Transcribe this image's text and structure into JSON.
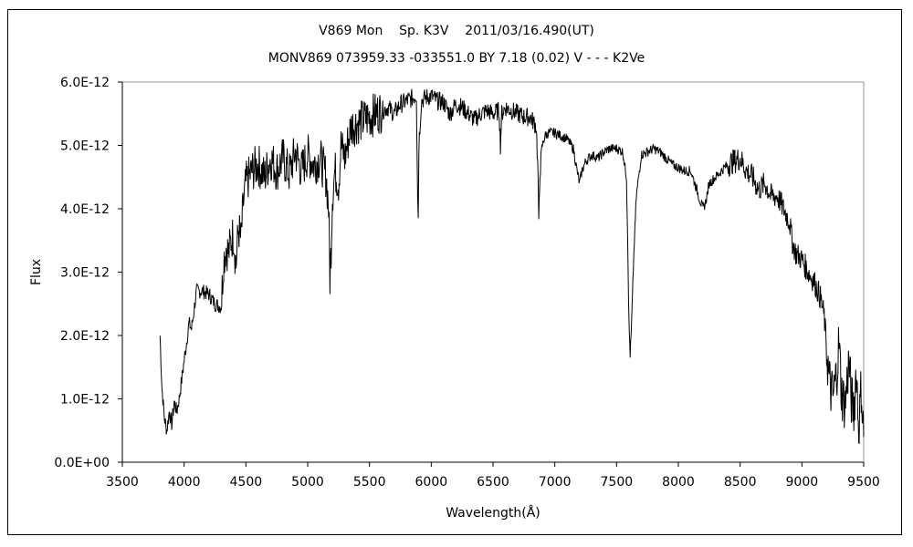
{
  "chart_data": {
    "type": "line",
    "title": "V869 Mon    Sp. K3V    2011/03/16.490(UT)",
    "subtitle": "MONV869 073959.33 -033551.0 BY 7.18 (0.02) V - - - K2Ve",
    "xlabel": "Wavelength(Å)",
    "ylabel": "Flux",
    "xlim": [
      3500,
      9500
    ],
    "ylim": [
      0,
      6e-12
    ],
    "xticks": [
      "3500",
      "4000",
      "4500",
      "5000",
      "5500",
      "6000",
      "6500",
      "7000",
      "7500",
      "8000",
      "8500",
      "9000",
      "9500"
    ],
    "yticks": [
      "0.0E+00",
      "1.0E-12",
      "2.0E-12",
      "3.0E-12",
      "4.0E-12",
      "5.0E-12",
      "6.0E-12"
    ],
    "grid": false,
    "legend": "none",
    "line_color": "#000000",
    "series": [
      {
        "x": [
          3805,
          3820,
          3840,
          3860,
          3880,
          3900,
          3920,
          3940,
          3960,
          3980,
          4000,
          4020,
          4040,
          4060,
          4080,
          4100,
          4150,
          4200,
          4250,
          4300,
          4320,
          4340,
          4360,
          4380,
          4400,
          4420,
          4440,
          4460,
          4480,
          4500,
          4550,
          4600,
          4650,
          4700,
          4750,
          4800,
          4850,
          4900,
          4950,
          5000,
          5050,
          5100,
          5150,
          5170,
          5180,
          5190,
          5200,
          5220,
          5250,
          5270,
          5300,
          5350,
          5400,
          5450,
          5500,
          5550,
          5600,
          5650,
          5700,
          5750,
          5800,
          5850,
          5880,
          5890,
          5895,
          5900,
          5920,
          5950,
          6000,
          6050,
          6100,
          6150,
          6200,
          6250,
          6300,
          6350,
          6400,
          6450,
          6500,
          6550,
          6560,
          6570,
          6600,
          6650,
          6700,
          6750,
          6800,
          6850,
          6865,
          6870,
          6880,
          6900,
          6920,
          6950,
          7000,
          7050,
          7100,
          7150,
          7180,
          7200,
          7220,
          7250,
          7300,
          7350,
          7400,
          7450,
          7500,
          7550,
          7580,
          7590,
          7600,
          7610,
          7620,
          7640,
          7660,
          7700,
          7750,
          7800,
          7850,
          7900,
          7950,
          8000,
          8050,
          8100,
          8150,
          8180,
          8200,
          8220,
          8250,
          8300,
          8350,
          8400,
          8450,
          8500,
          8550,
          8600,
          8650,
          8700,
          8750,
          8800,
          8850,
          8900,
          8920,
          8950,
          9000,
          9050,
          9100,
          9120,
          9150,
          9180,
          9200,
          9220,
          9250,
          9280,
          9300,
          9320,
          9350,
          9380,
          9400,
          9420,
          9440,
          9460,
          9480,
          9500
        ],
        "y": [
          2e-12,
          1.2e-12,
          7e-13,
          5e-13,
          8e-13,
          6e-13,
          9.5e-13,
          8e-13,
          1e-12,
          1.3e-12,
          1.6e-12,
          1.9e-12,
          2.2e-12,
          2.1e-12,
          2.4e-12,
          2.7e-12,
          2.7e-12,
          2.65e-12,
          2.5e-12,
          2.45e-12,
          3.2e-12,
          3.4e-12,
          3.3e-12,
          3.5e-12,
          3.6e-12,
          3.1e-12,
          3.7e-12,
          3.5e-12,
          4.1e-12,
          4.4e-12,
          4.6e-12,
          4.7e-12,
          4.5e-12,
          4.8e-12,
          4.6e-12,
          4.8e-12,
          4.55e-12,
          4.9e-12,
          4.6e-12,
          4.85e-12,
          4.7e-12,
          4.8e-12,
          4.5e-12,
          4e-12,
          2.9e-12,
          3.4e-12,
          4.2e-12,
          4.6e-12,
          4.4e-12,
          5e-12,
          4.8e-12,
          5.3e-12,
          5.35e-12,
          5.4e-12,
          5.45e-12,
          5.5e-12,
          5.55e-12,
          5.6e-12,
          5.5e-12,
          5.65e-12,
          5.7e-12,
          5.75e-12,
          5.8e-12,
          4.2e-12,
          3.9e-12,
          5e-12,
          5.7e-12,
          5.75e-12,
          5.78e-12,
          5.7e-12,
          5.68e-12,
          5.5e-12,
          5.65e-12,
          5.6e-12,
          5.5e-12,
          5.4e-12,
          5.5e-12,
          5.55e-12,
          5.5e-12,
          5.55e-12,
          5e-12,
          5.5e-12,
          5.6e-12,
          5.55e-12,
          5.5e-12,
          5.45e-12,
          5.45e-12,
          5.3e-12,
          4.5e-12,
          3.7e-12,
          4.6e-12,
          5e-12,
          5.15e-12,
          5.2e-12,
          5.2e-12,
          5.15e-12,
          5.1e-12,
          4.95e-12,
          4.6e-12,
          4.4e-12,
          4.6e-12,
          4.75e-12,
          4.85e-12,
          4.8e-12,
          4.9e-12,
          4.95e-12,
          4.95e-12,
          4.9e-12,
          4.5e-12,
          3.5e-12,
          2.2e-12,
          1.7e-12,
          2.1e-12,
          3.3e-12,
          4.2e-12,
          4.85e-12,
          4.9e-12,
          4.95e-12,
          4.9e-12,
          4.8e-12,
          4.7e-12,
          4.65e-12,
          4.6e-12,
          4.6e-12,
          4.3e-12,
          4.1e-12,
          4e-12,
          4.1e-12,
          4.4e-12,
          4.5e-12,
          4.6e-12,
          4.7e-12,
          4.75e-12,
          4.8e-12,
          4.6e-12,
          4.5e-12,
          4.3e-12,
          4.4e-12,
          4.2e-12,
          4.2e-12,
          4e-12,
          3.8e-12,
          3.5e-12,
          3.3e-12,
          3.2e-12,
          3e-12,
          2.85e-12,
          2.75e-12,
          2.6e-12,
          2.3e-12,
          1.8e-12,
          1.3e-12,
          1e-12,
          1.4e-12,
          1.9e-12,
          1.1e-12,
          9e-13,
          1.6e-12,
          1e-12,
          8e-13,
          1.5e-12,
          5e-13,
          1.2e-12,
          4e-13
        ]
      }
    ]
  }
}
